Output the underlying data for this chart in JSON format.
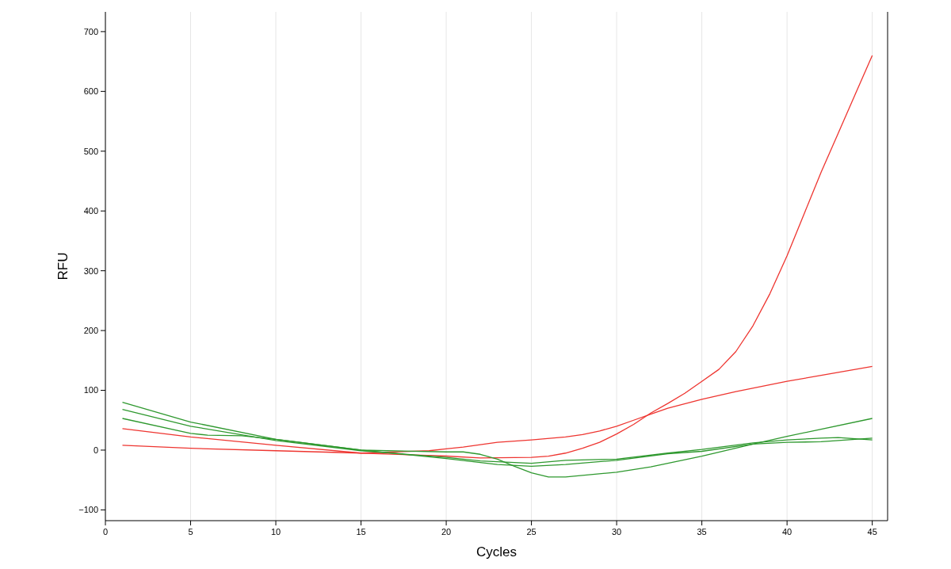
{
  "chart_data": {
    "type": "line",
    "xlabel": "Cycles",
    "ylabel": "RFU",
    "xlim": [
      0,
      45.9
    ],
    "ylim": [
      -118,
      733
    ],
    "xticks": [
      0,
      5,
      10,
      15,
      20,
      25,
      30,
      35,
      40,
      45
    ],
    "yticks": [
      -100,
      0,
      100,
      200,
      300,
      400,
      500,
      600,
      700
    ],
    "grid": "x",
    "series": [
      {
        "color": "#ee3530",
        "x": [
          1,
          5,
          10,
          15,
          20,
          22,
          25,
          26,
          27,
          28,
          29,
          30,
          31,
          32,
          33,
          34,
          35,
          36,
          37,
          38,
          39,
          40,
          41,
          42,
          43,
          44,
          45
        ],
        "values": [
          36,
          22,
          8,
          -5,
          -10,
          -13,
          -12,
          -10,
          -5,
          3,
          13,
          27,
          43,
          62,
          78,
          95,
          115,
          135,
          165,
          208,
          262,
          325,
          395,
          465,
          530,
          595,
          660
        ]
      },
      {
        "color": "#ee3530",
        "x": [
          1,
          5,
          10,
          15,
          17,
          19,
          20,
          21,
          22,
          23,
          25,
          27,
          28,
          29,
          30,
          31,
          32,
          33,
          35,
          37,
          40,
          42,
          45
        ],
        "values": [
          8,
          3,
          -1,
          -5,
          -3,
          -1,
          2,
          5,
          9,
          13,
          17,
          22,
          26,
          32,
          40,
          50,
          60,
          70,
          85,
          98,
          115,
          125,
          140
        ]
      },
      {
        "color": "#2e982e",
        "x": [
          1,
          5,
          6,
          8,
          10,
          15,
          20,
          21,
          22,
          23,
          24,
          25,
          26,
          27,
          30,
          32,
          35,
          38,
          40,
          45
        ],
        "values": [
          53,
          28,
          25,
          24,
          18,
          0,
          -3,
          -3,
          -7,
          -15,
          -27,
          -38,
          -45,
          -45,
          -37,
          -28,
          -10,
          10,
          23,
          53
        ]
      },
      {
        "color": "#2e982e",
        "x": [
          1,
          5,
          10,
          15,
          20,
          22,
          25,
          27,
          30,
          33,
          35,
          38,
          40,
          42,
          43,
          45
        ],
        "values": [
          68,
          40,
          16,
          -1,
          -12,
          -18,
          -22,
          -17,
          -15,
          -5,
          1,
          12,
          17,
          20,
          21,
          17
        ]
      },
      {
        "color": "#2e982e",
        "x": [
          1,
          5,
          10,
          15,
          20,
          23,
          25,
          27,
          30,
          33,
          35,
          38,
          40,
          42,
          45
        ],
        "values": [
          80,
          47,
          18,
          0,
          -14,
          -24,
          -27,
          -24,
          -17,
          -6,
          -2,
          10,
          13,
          14,
          20
        ]
      }
    ]
  }
}
